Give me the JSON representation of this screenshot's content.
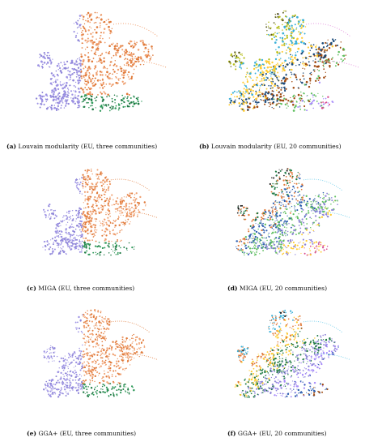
{
  "panels": [
    {
      "id": "a",
      "letter": "(a)",
      "text": " Louvain modularity (EU, three communities)",
      "palette": [
        "#f0a070",
        "#e07a3a",
        "#8f86d8",
        "#9d92e4",
        "#2f9a5a",
        "#1f7a44"
      ]
    },
    {
      "id": "b",
      "letter": "(b)",
      "text": " Louvain modularity (EU, 20 communities)",
      "palette": [
        "#e59be0",
        "#1f7a44",
        "#e07a3a",
        "#8f86d8",
        "#5a5a1a",
        "#b8c020",
        "#3bb0d8",
        "#ffcc33",
        "#1b4a7a",
        "#a04a10",
        "#60c060",
        "#a78bfa",
        "#d94c8f",
        "#1a1a1a"
      ]
    },
    {
      "id": "c",
      "letter": "(c)",
      "text": " MIGA (EU, three communities)",
      "palette": [
        "#e07a3a",
        "#f0a070",
        "#8f86d8",
        "#9d92e4",
        "#2f9a5a",
        "#1f7a44"
      ]
    },
    {
      "id": "d",
      "letter": "(d)",
      "text": " MIGA (EU, 20 communities)",
      "palette": [
        "#5fc8e8",
        "#3bb0d8",
        "#e59be0",
        "#1a1a1a",
        "#1f7a44",
        "#e07a3a",
        "#2f5fb0",
        "#60c060",
        "#8f86d8",
        "#ffcc33",
        "#d94c8f",
        "#a04a10"
      ]
    },
    {
      "id": "e",
      "letter": "(e)",
      "text": " GGA+ (EU, three communities)",
      "palette": [
        "#e07a3a",
        "#f0a070",
        "#8f86d8",
        "#9d92e4",
        "#2f9a5a",
        "#1f7a44"
      ]
    },
    {
      "id": "f",
      "letter": "(f)",
      "text": " GGA+ (EU, 20 communities)",
      "palette": [
        "#5fc8e8",
        "#e59be0",
        "#60c060",
        "#1a1a1a",
        "#3bb0d8",
        "#e07a3a",
        "#ffcc33",
        "#1f7a44",
        "#8f86d8",
        "#a78bfa",
        "#2f5fb0",
        "#a04a10",
        "#d94c8f"
      ]
    }
  ]
}
